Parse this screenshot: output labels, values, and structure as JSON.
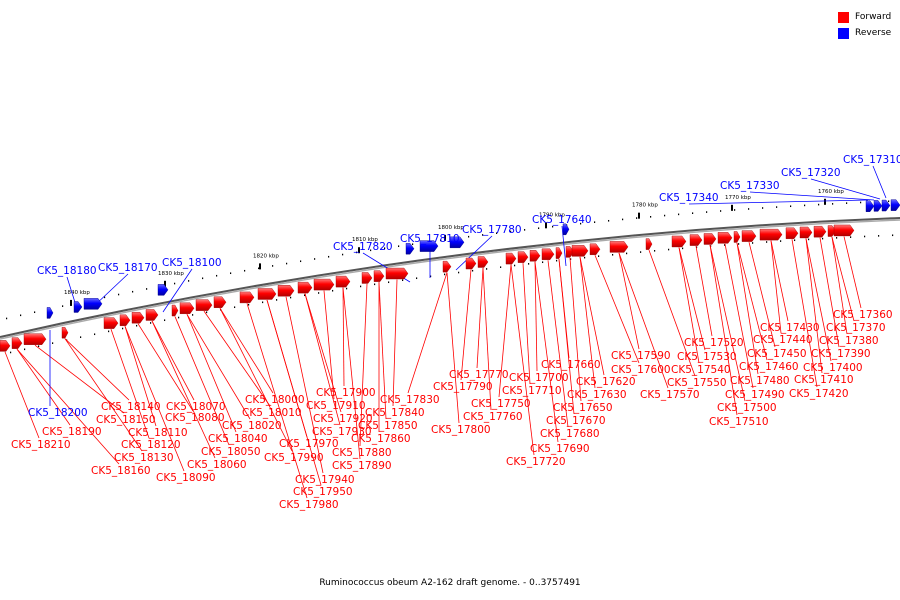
{
  "legend": {
    "forward_label": "Forward",
    "reverse_label": "Reverse",
    "forward_color": "#ff0000",
    "reverse_color": "#0000ff"
  },
  "caption": "Ruminococcus obeum A2-162 draft genome. - 0..3757491",
  "scale_ticks": [
    {
      "label": "1840 kbp"
    },
    {
      "label": "1830 kbp"
    },
    {
      "label": "1820 kbp"
    },
    {
      "label": "1810 kbp"
    },
    {
      "label": "1800 kbp"
    },
    {
      "label": "1790 kbp"
    },
    {
      "label": "1780 kbp"
    },
    {
      "label": "1770 kbp"
    },
    {
      "label": "1760 kbp"
    }
  ],
  "reverse_gene_labels": [
    "CK5_18180",
    "CK5_18170",
    "CK5_18100",
    "CK5_17820",
    "CK5_17810",
    "CK5_17780",
    "CK5_17640",
    "CK5_17340",
    "CK5_17330",
    "CK5_17320",
    "CK5_17310",
    "CK5_18200"
  ],
  "forward_gene_labels": [
    "CK5_18210",
    "CK5_18190",
    "CK5_18160",
    "CK5_18150",
    "CK5_18140",
    "CK5_18130",
    "CK5_18120",
    "CK5_18110",
    "CK5_18090",
    "CK5_18080",
    "CK5_18070",
    "CK5_18060",
    "CK5_18050",
    "CK5_18040",
    "CK5_18020",
    "CK5_18010",
    "CK5_18000",
    "CK5_17990",
    "CK5_17980",
    "CK5_17970",
    "CK5_17950",
    "CK5_17940",
    "CK5_17930",
    "CK5_17920",
    "CK5_17910",
    "CK5_17900",
    "CK5_17890",
    "CK5_17880",
    "CK5_17860",
    "CK5_17850",
    "CK5_17840",
    "CK5_17830",
    "CK5_17800",
    "CK5_17790",
    "CK5_17770",
    "CK5_17760",
    "CK5_17750",
    "CK5_17720",
    "CK5_17710",
    "CK5_17700",
    "CK5_17690",
    "CK5_17680",
    "CK5_17670",
    "CK5_17660",
    "CK5_17650",
    "CK5_17630",
    "CK5_17620",
    "CK5_17600",
    "CK5_17590",
    "CK5_17570",
    "CK5_17550",
    "CK5_17540",
    "CK5_17530",
    "CK5_17520",
    "CK5_17510",
    "CK5_17500",
    "CK5_17490",
    "CK5_17480",
    "CK5_17460",
    "CK5_17450",
    "CK5_17440",
    "CK5_17430",
    "CK5_17420",
    "CK5_17410",
    "CK5_17400",
    "CK5_17390",
    "CK5_17380",
    "CK5_17370",
    "CK5_17360"
  ]
}
